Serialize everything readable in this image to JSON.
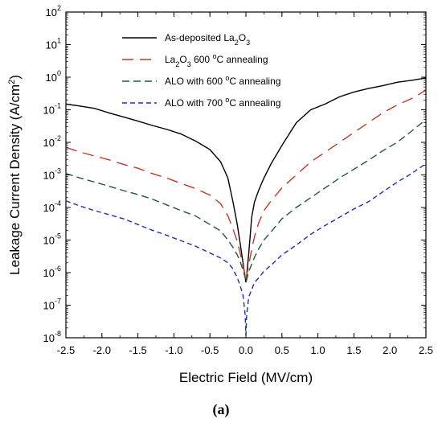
{
  "chart_data": {
    "type": "line",
    "caption": "(a)",
    "xlabel": "Electric Field (MV/cm)",
    "ylabel": "Leakage Current Density (A/cm",
    "ylabel_sup": "2",
    "ylabel_close": ")",
    "xlim": [
      -2.5,
      2.5
    ],
    "ylim_exponent": [
      -8,
      2
    ],
    "y_scale": "log",
    "x_ticks": [
      "-2.5",
      "-2.0",
      "-1.5",
      "-1.0",
      "-0.5",
      "0.0",
      "0.5",
      "1.0",
      "1.5",
      "2.0",
      "2.5"
    ],
    "y_tick_base": "10",
    "y_tick_exponents": [
      "-8",
      "-7",
      "-6",
      "-5",
      "-4",
      "-3",
      "-2",
      "-1",
      "0",
      "1",
      "2"
    ],
    "legend": {
      "placement": "top-center",
      "entries": [
        {
          "parts": [
            [
              "As-deposited La",
              ""
            ],
            [
              "2",
              "sub"
            ],
            [
              "O",
              ""
            ],
            [
              "3",
              "sub"
            ]
          ]
        },
        {
          "parts": [
            [
              "La",
              ""
            ],
            [
              "2",
              "sub"
            ],
            [
              "O",
              ""
            ],
            [
              "3",
              "sub"
            ],
            [
              " 600 ",
              ""
            ],
            [
              "o",
              "sup"
            ],
            [
              "C annealing",
              ""
            ]
          ]
        },
        {
          "parts": [
            [
              "ALO with 600 ",
              ""
            ],
            [
              "o",
              "sup"
            ],
            [
              "C annealing",
              ""
            ]
          ]
        },
        {
          "parts": [
            [
              "ALO with 700 ",
              ""
            ],
            [
              "o",
              "sup"
            ],
            [
              "C annealing",
              ""
            ]
          ]
        }
      ]
    },
    "series": [
      {
        "color": "#000000",
        "dash": "solid",
        "x": [
          -2.5,
          -2.3,
          -2.1,
          -1.9,
          -1.7,
          -1.5,
          -1.3,
          -1.1,
          -0.9,
          -0.7,
          -0.5,
          -0.35,
          -0.25,
          -0.18,
          -0.12,
          -0.08,
          -0.04,
          -0.01,
          0.0,
          0.01,
          0.04,
          0.08,
          0.12,
          0.18,
          0.25,
          0.35,
          0.5,
          0.7,
          0.9,
          1.1,
          1.3,
          1.5,
          1.7,
          1.9,
          2.1,
          2.3,
          2.5
        ],
        "y": [
          0.15,
          0.13,
          0.11,
          0.08,
          0.06,
          0.045,
          0.033,
          0.025,
          0.018,
          0.011,
          0.006,
          0.0025,
          0.0008,
          0.00015,
          3e-05,
          8e-06,
          2e-06,
          7e-07,
          5e-07,
          8e-07,
          4e-06,
          5e-05,
          0.00015,
          0.00035,
          0.0008,
          0.0022,
          0.008,
          0.04,
          0.1,
          0.15,
          0.25,
          0.35,
          0.45,
          0.55,
          0.7,
          0.8,
          0.95
        ]
      },
      {
        "color": "#c0392b",
        "dash": "long",
        "x": [
          -2.5,
          -2.3,
          -2.1,
          -1.9,
          -1.7,
          -1.5,
          -1.3,
          -1.1,
          -0.9,
          -0.7,
          -0.5,
          -0.35,
          -0.25,
          -0.18,
          -0.12,
          -0.08,
          -0.04,
          -0.01,
          0.0,
          0.01,
          0.04,
          0.08,
          0.12,
          0.18,
          0.25,
          0.35,
          0.5,
          0.7,
          0.9,
          1.1,
          1.3,
          1.5,
          1.7,
          1.9,
          2.1,
          2.3,
          2.5
        ],
        "y": [
          0.007,
          0.005,
          0.0038,
          0.0029,
          0.0021,
          0.0016,
          0.0011,
          0.0008,
          0.00055,
          0.00038,
          0.00024,
          0.00013,
          5.5e-05,
          2.2e-05,
          9e-06,
          4e-06,
          1.6e-06,
          8e-07,
          6e-07,
          8e-07,
          1.8e-06,
          5e-06,
          1.3e-05,
          3.5e-05,
          8e-05,
          0.00016,
          0.0004,
          0.001,
          0.0025,
          0.005,
          0.01,
          0.02,
          0.04,
          0.08,
          0.14,
          0.22,
          0.4
        ]
      },
      {
        "color": "#1e5c3a",
        "dash": "medium",
        "x": [
          -2.5,
          -2.3,
          -2.1,
          -1.9,
          -1.7,
          -1.5,
          -1.3,
          -1.1,
          -0.9,
          -0.7,
          -0.5,
          -0.35,
          -0.25,
          -0.18,
          -0.12,
          -0.08,
          -0.04,
          -0.01,
          0.0,
          0.01,
          0.04,
          0.08,
          0.12,
          0.18,
          0.25,
          0.35,
          0.5,
          0.7,
          0.9,
          1.1,
          1.3,
          1.5,
          1.7,
          1.9,
          2.1,
          2.3,
          2.5
        ],
        "y": [
          0.0011,
          0.0008,
          0.0006,
          0.00045,
          0.00033,
          0.00025,
          0.00018,
          0.00012,
          8e-05,
          5.5e-05,
          3e-05,
          1.9e-05,
          1e-05,
          6e-06,
          3.5e-06,
          2.2e-06,
          1.2e-06,
          7e-07,
          5e-07,
          6e-07,
          1.1e-06,
          1.8e-06,
          3e-06,
          5.5e-06,
          1e-05,
          1.8e-05,
          4.5e-05,
          0.0001,
          0.0002,
          0.0004,
          0.0008,
          0.0015,
          0.0028,
          0.0055,
          0.01,
          0.022,
          0.05
        ]
      },
      {
        "color": "#1f2fb0",
        "dash": "short",
        "x": [
          -2.5,
          -2.3,
          -2.1,
          -1.9,
          -1.7,
          -1.5,
          -1.3,
          -1.1,
          -0.9,
          -0.7,
          -0.5,
          -0.35,
          -0.25,
          -0.18,
          -0.12,
          -0.08,
          -0.04,
          -0.01,
          0.0,
          0.01,
          0.04,
          0.08,
          0.12,
          0.18,
          0.25,
          0.35,
          0.5,
          0.7,
          0.9,
          1.1,
          1.3,
          1.5,
          1.7,
          1.9,
          2.1,
          2.3,
          2.5
        ],
        "y": [
          0.00016,
          0.00011,
          8e-05,
          6e-05,
          4.5e-05,
          3e-05,
          2e-05,
          1.4e-05,
          9.5e-06,
          6.5e-06,
          4e-06,
          2.8e-06,
          2e-06,
          1.3e-06,
          7e-07,
          4e-07,
          2e-07,
          5e-08,
          1.2e-08,
          5e-08,
          1.8e-07,
          3e-07,
          5e-07,
          7e-07,
          1.1e-06,
          1.7e-06,
          3.5e-06,
          7e-06,
          1.5e-05,
          2.8e-05,
          5e-05,
          9e-05,
          0.00015,
          0.0003,
          0.0006,
          0.0011,
          0.0022
        ]
      }
    ]
  }
}
